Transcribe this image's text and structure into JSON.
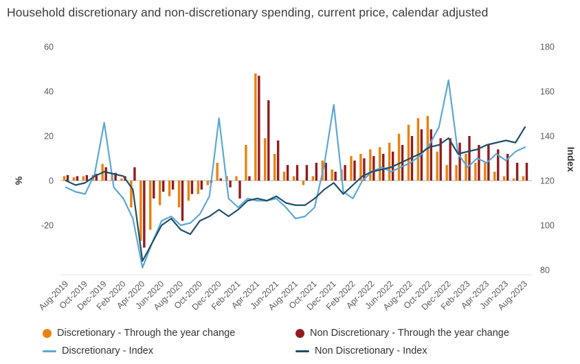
{
  "chart": {
    "title": "Household discretionary and non-discretionary spending, current price, calendar adjusted"
  },
  "chart_data": {
    "type": "combo",
    "title": "Household discretionary and non-discretionary spending, current price, calendar adjusted",
    "legend_position": "bottom",
    "grid": "zero-line-only",
    "categories": [
      "Aug-2019",
      "Sep-2019",
      "Oct-2019",
      "Nov-2019",
      "Dec-2019",
      "Jan-2020",
      "Feb-2020",
      "Mar-2020",
      "Apr-2020",
      "May-2020",
      "Jun-2020",
      "Jul-2020",
      "Aug-2020",
      "Sep-2020",
      "Oct-2020",
      "Nov-2020",
      "Dec-2020",
      "Jan-2021",
      "Feb-2021",
      "Mar-2021",
      "Apr-2021",
      "May-2021",
      "Jun-2021",
      "Jul-2021",
      "Aug-2021",
      "Sep-2021",
      "Oct-2021",
      "Nov-2021",
      "Dec-2021",
      "Jan-2022",
      "Feb-2022",
      "Mar-2022",
      "Apr-2022",
      "May-2022",
      "Jun-2022",
      "Jul-2022",
      "Aug-2022",
      "Sep-2022",
      "Oct-2022",
      "Nov-2022",
      "Dec-2022",
      "Jan-2023",
      "Feb-2023",
      "Mar-2023",
      "Apr-2023",
      "May-2023",
      "Jun-2023",
      "Jul-2023",
      "Aug-2023"
    ],
    "x_tick_step": 2,
    "left_axis": {
      "label": "%",
      "ticks": [
        60,
        40,
        20,
        0,
        -20
      ],
      "min": -42,
      "max": 60
    },
    "right_axis": {
      "label": "Index",
      "ticks": [
        180,
        160,
        140,
        120,
        100,
        80
      ]
    },
    "series": [
      {
        "name": "Discretionary - Through the year change",
        "type": "bar",
        "axis": "left",
        "color": "#E8820D",
        "values": [
          2,
          1.5,
          2,
          2.5,
          7.5,
          3,
          1,
          -12,
          -27,
          -22,
          -11,
          -7,
          -12,
          -9,
          -6,
          -2,
          8,
          2,
          2,
          16,
          48,
          19,
          12,
          4,
          2,
          -2,
          2,
          9,
          5,
          5,
          11,
          12,
          14,
          15,
          17,
          21,
          25,
          28,
          29,
          13,
          7,
          7,
          12,
          8,
          8,
          4,
          2,
          1,
          2
        ]
      },
      {
        "name": "Non Discretionary - Through the year change",
        "type": "bar",
        "axis": "left",
        "color": "#941B1E",
        "values": [
          2.5,
          2,
          2.5,
          3,
          6,
          3.5,
          2,
          6,
          -30,
          -8,
          -5,
          -4,
          -18,
          -6,
          -4,
          -1,
          1,
          -3,
          -8,
          2,
          47,
          36,
          18,
          7,
          7,
          7,
          8,
          8,
          4,
          7,
          9,
          10,
          11,
          12,
          13,
          16,
          20,
          23,
          23,
          19,
          19,
          17,
          20,
          16,
          16,
          14,
          12,
          8,
          8
        ]
      },
      {
        "name": "Discretionary - Index",
        "type": "line",
        "axis": "right",
        "color": "#5AA7D6",
        "values": [
          117,
          115,
          114,
          123,
          146,
          117,
          112,
          103,
          81,
          92,
          102,
          104,
          100,
          101,
          105,
          113,
          148,
          112,
          108,
          112,
          111,
          111,
          112,
          108,
          103,
          104,
          108,
          127,
          154,
          115,
          112,
          120,
          124,
          126,
          124,
          126,
          128,
          131,
          136,
          144,
          165,
          132,
          126,
          130,
          128,
          132,
          129,
          133,
          135
        ]
      },
      {
        "name": "Non Discretionary - Index",
        "type": "line",
        "axis": "right",
        "color": "#1E4E66",
        "values": [
          120,
          118,
          119,
          122,
          124,
          123,
          122,
          116,
          84,
          92,
          100,
          103,
          98,
          96,
          102,
          104,
          107,
          104,
          107,
          111,
          112,
          111,
          113,
          110,
          109,
          109,
          112,
          116,
          119,
          114,
          118,
          122,
          124,
          125,
          126,
          128,
          130,
          132,
          135,
          136,
          139,
          132,
          133,
          134,
          136,
          137,
          138,
          137,
          144
        ]
      }
    ]
  }
}
